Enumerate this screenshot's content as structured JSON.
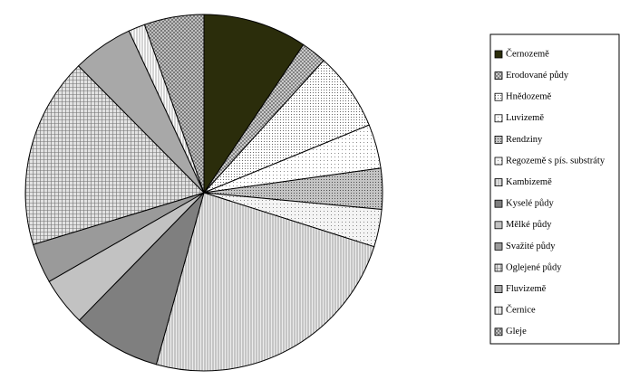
{
  "chart_data": {
    "type": "pie",
    "categories": [
      "Černozemě",
      "Erodované půdy",
      "Hnědozemě",
      "Luvizemě",
      "Rendziny",
      "Regozemě s pís. substráty",
      "Kambizemě",
      "Kyselé půdy",
      "Mělké půdy",
      "Svažité půdy",
      "Oglejené půdy",
      "Fluvizemě",
      "Černice",
      "Gleje"
    ],
    "values": [
      9.4,
      2.3,
      7.1,
      4.0,
      3.7,
      3.4,
      24.4,
      8.0,
      4.4,
      3.6,
      17.3,
      5.5,
      1.5,
      5.4
    ],
    "colors": [
      "#2b2d0b",
      "#d4d4d4",
      "#ffffff",
      "#ffffff",
      "#c4c4c4",
      "#f4f4f4",
      "#ececec",
      "#7f7f7f",
      "#c2c2c2",
      "#9a9a9a",
      "#e2e2e2",
      "#a8a8a8",
      "#ffffff",
      "#c8c8c8"
    ],
    "legend": "right"
  }
}
